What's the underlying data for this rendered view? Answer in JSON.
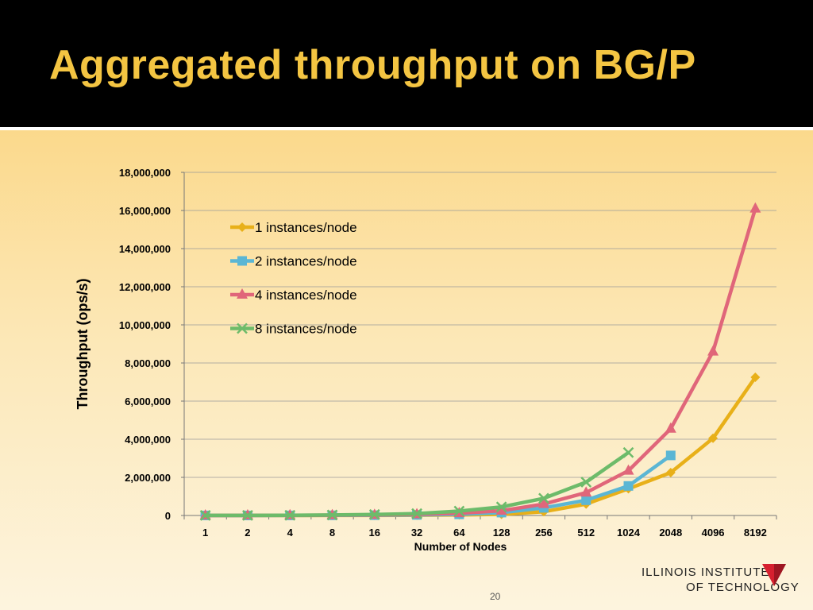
{
  "slide": {
    "title": "Aggregated throughput on BG/P",
    "page_number": "20",
    "logo": {
      "line1": "ILLINOIS INSTITUTE",
      "line2": "OF TECHNOLOGY"
    }
  },
  "colors": {
    "header_bg": "#000000",
    "title": "#f4c542",
    "series": [
      "#e8b019",
      "#5bb6d4",
      "#e0667a",
      "#6dbb6a"
    ]
  },
  "chart_data": {
    "type": "line",
    "title": "",
    "xlabel": "Number of Nodes",
    "ylabel": "Throughput (ops/s)",
    "categories": [
      "1",
      "2",
      "4",
      "8",
      "16",
      "32",
      "64",
      "128",
      "256",
      "512",
      "1024",
      "2048",
      "4096",
      "8192"
    ],
    "ylim": [
      0,
      18000000
    ],
    "yticks": [
      0,
      2000000,
      4000000,
      6000000,
      8000000,
      10000000,
      12000000,
      14000000,
      16000000,
      18000000
    ],
    "ytick_labels": [
      "0",
      "2,000,000",
      "4,000,000",
      "6,000,000",
      "8,000,000",
      "10,000,000",
      "12,000,000",
      "14,000,000",
      "16,000,000",
      "18,000,000"
    ],
    "grid": true,
    "legend_position": "top-left",
    "series": [
      {
        "name": "1 instances/node",
        "marker": "diamond",
        "values": [
          400,
          800,
          1700,
          3500,
          7000,
          14000,
          30000,
          60000,
          200000,
          600000,
          1400000,
          2250000,
          4050000,
          7250000
        ]
      },
      {
        "name": "2 instances/node",
        "marker": "square",
        "values": [
          1000,
          2000,
          4000,
          8000,
          15000,
          30000,
          60000,
          150000,
          400000,
          800000,
          1550000,
          3150000,
          null,
          null
        ]
      },
      {
        "name": "4 instances/node",
        "marker": "triangle",
        "values": [
          2000,
          4000,
          8000,
          15000,
          30000,
          60000,
          120000,
          250000,
          600000,
          1200000,
          2350000,
          4550000,
          8600000,
          16100000
        ]
      },
      {
        "name": "8 instances/node",
        "marker": "x",
        "values": [
          3000,
          6000,
          12000,
          25000,
          50000,
          100000,
          230000,
          450000,
          900000,
          1750000,
          3300000,
          null,
          null,
          null
        ]
      }
    ]
  }
}
